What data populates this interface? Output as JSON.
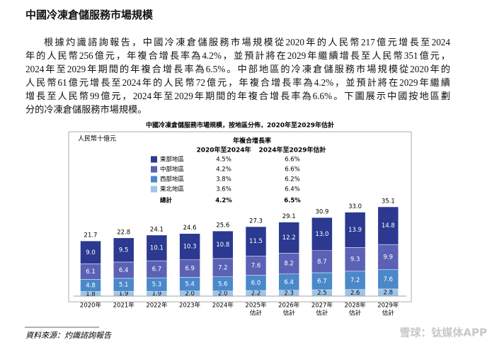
{
  "document": {
    "heading": "中國冷凍倉儲服務市場規模",
    "paragraph_lines": [
      "根據灼識諮詢報告，中國冷凍倉儲服務市場規模從2020年的人民幣217億元增長至2024",
      "年的人民幣256億元，年複合增長率為4.2%，並預計將在2029年繼續增長至人民幣351億元，",
      "2024年至2029年期間的年複合增長率為6.5%。中部地區的冷凍倉儲服務市場規模從2020年的",
      "人民幣61億元增長至2024年的人民幣72億元，年複合增長率為4.2%，並預計將在2029年繼續",
      "增長至人民幣99億元，2024年至2029年期間的年複合增長率為6.6%。下圖展示中國按地區劃",
      "分的冷凍倉儲服務市場規模。"
    ],
    "source": "資料來源：灼識諮詢報告",
    "watermark": "雪球：钛媒体APP"
  },
  "chart_data": {
    "type": "stacked_bar",
    "title": "中國冷凍倉儲服務市場規模，按地區分佈，2020年至2029年估計",
    "y_unit": "人民幣十億元",
    "categories": [
      "2020年",
      "2021年",
      "2022年",
      "2023年",
      "2024年",
      "2025年",
      "2026年",
      "2027年",
      "2028年",
      "2029年"
    ],
    "category_sublabels": [
      null,
      null,
      null,
      null,
      null,
      "估計",
      "估計",
      "估計",
      "估計",
      "估計"
    ],
    "cagr_header": "年複合增長率",
    "cagr_periods": [
      "2020年至2024年",
      "2024年至2029年估計"
    ],
    "series": [
      {
        "name": "東部地區",
        "color": "#2b3990",
        "cagr": [
          "4.5%",
          "6.6%"
        ],
        "values": [
          9.0,
          9.5,
          10.1,
          10.3,
          10.8,
          11.5,
          12.2,
          13.0,
          13.9,
          14.8
        ],
        "value_labels": [
          "9.0",
          "9.5",
          "10.1",
          "10.3",
          "10.8",
          "11.5",
          "12.2",
          "13.0",
          "13.9",
          "14.8"
        ]
      },
      {
        "name": "中部地區",
        "color": "#5b62b5",
        "cagr": [
          "4.2%",
          "6.6%"
        ],
        "values": [
          6.1,
          6.4,
          6.7,
          6.9,
          7.2,
          7.6,
          8.2,
          8.7,
          9.3,
          9.9
        ],
        "value_labels": [
          "6.1",
          "6.4",
          "6.7",
          "6.9",
          "7.2",
          "7.6",
          "8.2",
          "8.7",
          "9.3",
          "9.9"
        ]
      },
      {
        "name": "西部地區",
        "color": "#4a88c9",
        "cagr": [
          "3.8%",
          "6.2%"
        ],
        "values": [
          4.8,
          5.1,
          5.3,
          5.4,
          5.6,
          6.0,
          6.4,
          6.7,
          7.2,
          7.6
        ],
        "value_labels": [
          "4.8",
          "5.1",
          "5.3",
          "5.4",
          "5.6",
          "6.0",
          "6.4",
          "6.7",
          "7.2",
          "7.6"
        ]
      },
      {
        "name": "東北地區",
        "color": "#9dc4e8",
        "cagr": [
          "3.6%",
          "6.4%"
        ],
        "values": [
          1.8,
          1.9,
          1.9,
          2.0,
          2.0,
          2.2,
          2.3,
          2.5,
          2.6,
          2.8
        ],
        "value_labels": [
          "1.8",
          "1.9",
          "1.9",
          "2.0",
          "2.0",
          "2.2",
          "2.3",
          "2.5",
          "2.6",
          "2.8"
        ]
      }
    ],
    "total_name": "總計",
    "total_cagr": [
      "4.2%",
      "6.5%"
    ],
    "totals": [
      21.7,
      22.8,
      24.1,
      24.6,
      25.6,
      27.3,
      29.1,
      30.9,
      33.0,
      35.1
    ],
    "total_labels": [
      "21.7",
      "22.8",
      "24.1",
      "24.6",
      "25.6",
      "27.3",
      "29.1",
      "30.9",
      "33.0",
      "35.1"
    ]
  }
}
